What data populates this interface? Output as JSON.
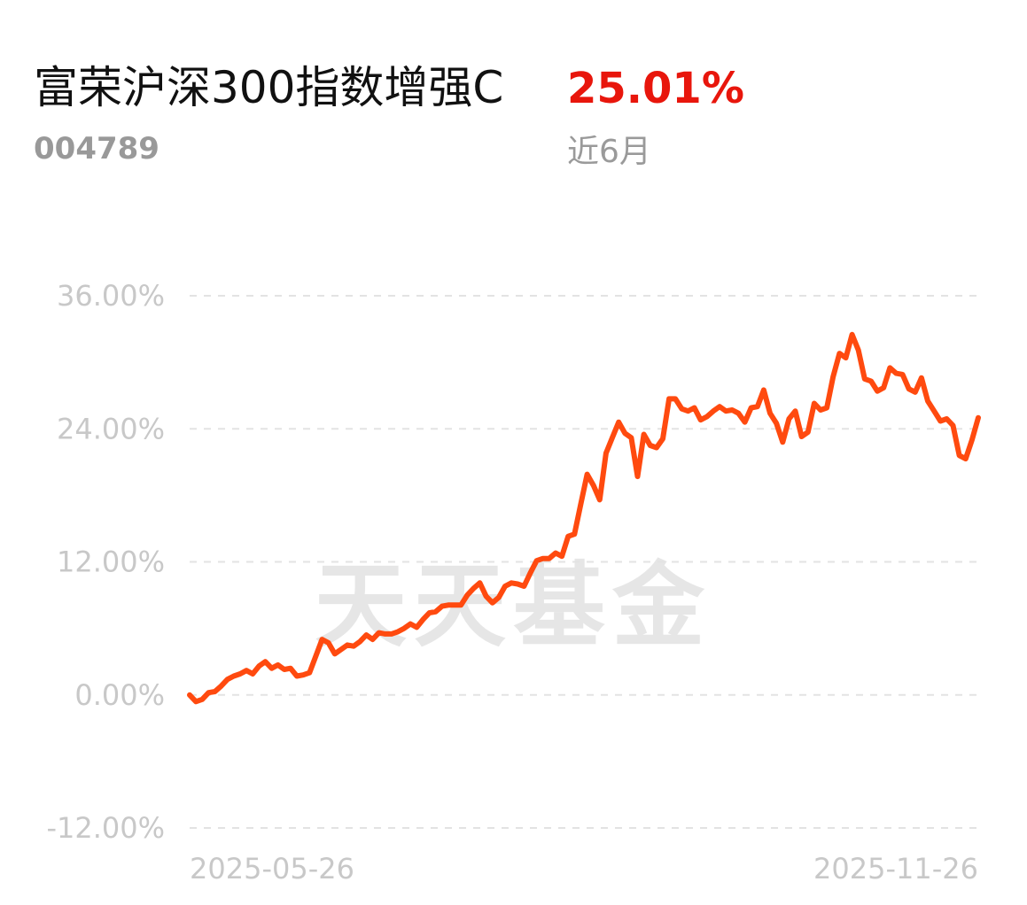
{
  "fund": {
    "name": "富荣沪深300指数增强C",
    "code": "004789",
    "return_value": "25.01%",
    "return_period": "近6月",
    "return_color": "#e8160c"
  },
  "watermark": "天天基金",
  "chart_data": {
    "type": "line",
    "yticks": [
      "36.00%",
      "24.00%",
      "12.00%",
      "0.00%",
      "-12.00%"
    ],
    "ytick_values": [
      36,
      24,
      12,
      0,
      -12
    ],
    "ylim": [
      -12,
      36
    ],
    "x_labels": [
      "2025-05-26",
      "2025-11-26"
    ],
    "grid": true,
    "line_color": "#ff4a0f",
    "series": [
      {
        "values": [
          0,
          -0.6,
          -0.4,
          0.2,
          0.3,
          0.8,
          1.4,
          1.7,
          1.9,
          2.2,
          1.9,
          2.6,
          3.0,
          2.4,
          2.7,
          2.3,
          2.4,
          1.7,
          1.8,
          2.0,
          3.5,
          5.0,
          4.7,
          3.7,
          4.1,
          4.5,
          4.4,
          4.8,
          5.4,
          5.0,
          5.6,
          5.5,
          5.5,
          5.7,
          6.0,
          6.4,
          6.1,
          6.8,
          7.4,
          7.5,
          8.0,
          8.1,
          8.1,
          8.1,
          9.0,
          9.6,
          10.1,
          8.9,
          8.3,
          8.8,
          9.8,
          10.1,
          10.0,
          9.8,
          11.0,
          12.1,
          12.3,
          12.3,
          12.8,
          12.5,
          14.3,
          14.5,
          17.2,
          19.9,
          18.9,
          17.6,
          21.8,
          23.2,
          24.6,
          23.6,
          23.2,
          19.7,
          23.5,
          22.5,
          22.3,
          23.1,
          26.7,
          26.7,
          25.8,
          25.6,
          25.9,
          24.8,
          25.1,
          25.6,
          26.0,
          25.6,
          25.7,
          25.4,
          24.6,
          25.9,
          26.0,
          27.5,
          25.4,
          24.5,
          22.8,
          24.9,
          25.6,
          23.3,
          23.7,
          26.3,
          25.7,
          25.9,
          28.7,
          30.8,
          30.4,
          32.5,
          31.1,
          28.5,
          28.3,
          27.4,
          27.7,
          29.5,
          29.0,
          28.9,
          27.6,
          27.3,
          28.6,
          26.5,
          25.6,
          24.7,
          24.9,
          24.3,
          21.6,
          21.3,
          23.0,
          25.0
        ]
      }
    ]
  }
}
